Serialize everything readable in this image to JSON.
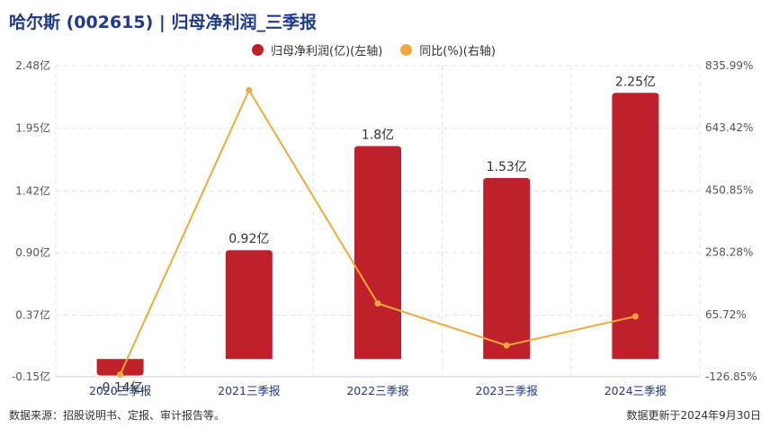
{
  "header": {
    "title": "哈尔斯 (002615) | 归母净利润_三季报"
  },
  "footer": {
    "source": "数据来源：招股说明书、定报、审计报告等。",
    "updated": "数据更新于2024年9月30日"
  },
  "colors": {
    "bar": "#c0202a",
    "line": "#f2a93b",
    "grid": "#e3e3e3",
    "title": "#1f3a8a"
  },
  "chart_data": {
    "type": "bar+line",
    "categories": [
      "2020三季报",
      "2021三季报",
      "2022三季报",
      "2023三季报",
      "2024三季报"
    ],
    "series": [
      {
        "name": "归母净利润(亿)(左轴)",
        "type": "bar",
        "axis": "left",
        "values": [
          -0.14,
          0.92,
          1.8,
          1.53,
          2.25
        ],
        "labels": [
          "-0.14亿",
          "0.92亿",
          "1.8亿",
          "1.53亿",
          "2.25亿"
        ]
      },
      {
        "name": "同比(%)(右轴)",
        "type": "line",
        "axis": "right",
        "values": [
          -120,
          760,
          100,
          -30,
          60
        ]
      }
    ],
    "left_axis": {
      "ticks": [
        2.48,
        1.95,
        1.42,
        0.9,
        0.37,
        -0.15
      ],
      "tick_labels": [
        "2.48亿",
        "1.95亿",
        "1.42亿",
        "0.90亿",
        "0.37亿",
        "-0.15亿"
      ],
      "range": [
        -0.15,
        2.48
      ]
    },
    "right_axis": {
      "ticks": [
        835.99,
        643.42,
        450.85,
        258.28,
        65.72,
        -126.85
      ],
      "tick_labels": [
        "835.99%",
        "643.42%",
        "450.85%",
        "258.28%",
        "65.72%",
        "-126.85%"
      ],
      "range": [
        -126.85,
        835.99
      ]
    },
    "grid": true,
    "legend_position": "top-center"
  }
}
